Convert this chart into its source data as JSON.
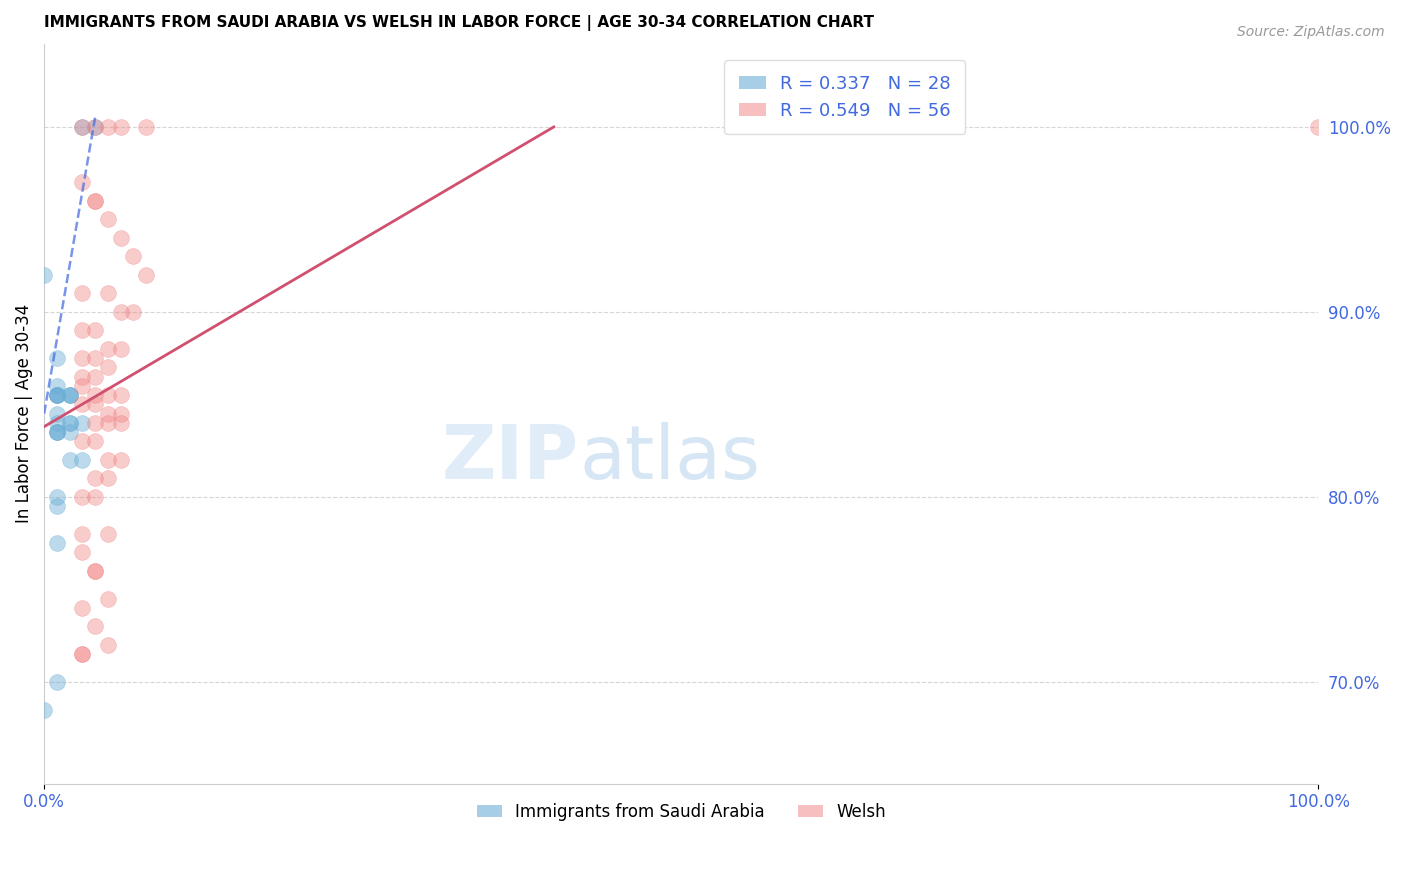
{
  "title": "IMMIGRANTS FROM SAUDI ARABIA VS WELSH IN LABOR FORCE | AGE 30-34 CORRELATION CHART",
  "source": "Source: ZipAtlas.com",
  "ylabel": "In Labor Force | Age 30-34",
  "right_yticks": [
    70.0,
    80.0,
    90.0,
    100.0
  ],
  "legend_entries": [
    {
      "label": "R = 0.337   N = 28",
      "color": "#6baed6"
    },
    {
      "label": "R = 0.549   N = 56",
      "color": "#f08080"
    }
  ],
  "legend_bottom": [
    "Immigrants from Saudi Arabia",
    "Welsh"
  ],
  "blue_scatter_x": [
    0.03,
    0.04,
    0.0,
    0.01,
    0.01,
    0.02,
    0.01,
    0.02,
    0.01,
    0.01,
    0.01,
    0.02,
    0.01,
    0.02,
    0.03,
    0.01,
    0.02,
    0.01,
    0.01,
    0.02,
    0.01,
    0.02,
    0.03,
    0.01,
    0.01,
    0.01,
    0.01,
    0.0
  ],
  "blue_scatter_y": [
    1.0,
    1.0,
    0.92,
    0.875,
    0.86,
    0.855,
    0.855,
    0.855,
    0.855,
    0.855,
    0.855,
    0.855,
    0.845,
    0.84,
    0.84,
    0.84,
    0.84,
    0.835,
    0.835,
    0.835,
    0.835,
    0.82,
    0.82,
    0.8,
    0.795,
    0.775,
    0.7,
    0.685
  ],
  "pink_scatter_x": [
    0.03,
    0.04,
    0.05,
    0.06,
    0.08,
    0.03,
    0.04,
    0.04,
    0.05,
    0.06,
    0.07,
    0.08,
    0.03,
    0.05,
    0.06,
    0.07,
    0.03,
    0.04,
    0.05,
    0.06,
    0.03,
    0.04,
    0.05,
    0.03,
    0.04,
    0.03,
    0.04,
    0.05,
    0.06,
    0.03,
    0.04,
    0.05,
    0.06,
    0.04,
    0.05,
    0.06,
    0.04,
    0.03,
    0.05,
    0.06,
    0.04,
    0.05,
    0.03,
    0.04,
    0.03,
    0.05,
    0.03,
    0.04,
    0.04,
    0.05,
    0.03,
    0.04,
    0.03,
    0.05,
    0.03,
    1.0
  ],
  "pink_scatter_y": [
    1.0,
    1.0,
    1.0,
    1.0,
    1.0,
    0.97,
    0.96,
    0.96,
    0.95,
    0.94,
    0.93,
    0.92,
    0.91,
    0.91,
    0.9,
    0.9,
    0.89,
    0.89,
    0.88,
    0.88,
    0.875,
    0.875,
    0.87,
    0.865,
    0.865,
    0.86,
    0.855,
    0.855,
    0.855,
    0.85,
    0.85,
    0.845,
    0.845,
    0.84,
    0.84,
    0.84,
    0.83,
    0.83,
    0.82,
    0.82,
    0.81,
    0.81,
    0.8,
    0.8,
    0.78,
    0.78,
    0.77,
    0.76,
    0.76,
    0.745,
    0.74,
    0.73,
    0.715,
    0.72,
    0.715,
    1.0
  ],
  "blue_line_x": [
    0.0,
    0.04
  ],
  "blue_line_y": [
    0.845,
    1.005
  ],
  "pink_line_x": [
    0.0,
    0.4
  ],
  "pink_line_y": [
    0.838,
    1.0
  ],
  "xlim": [
    0.0,
    1.0
  ],
  "ylim": [
    0.645,
    1.045
  ],
  "background_color": "#ffffff",
  "grid_color": "#cccccc",
  "scatter_blue": "#6baed6",
  "scatter_pink": "#f08080",
  "line_blue": "#4169e1",
  "line_pink": "#d05070",
  "watermark_zip": "ZIP",
  "watermark_atlas": "atlas",
  "title_fontsize": 11,
  "tick_label_color": "#4169e1"
}
